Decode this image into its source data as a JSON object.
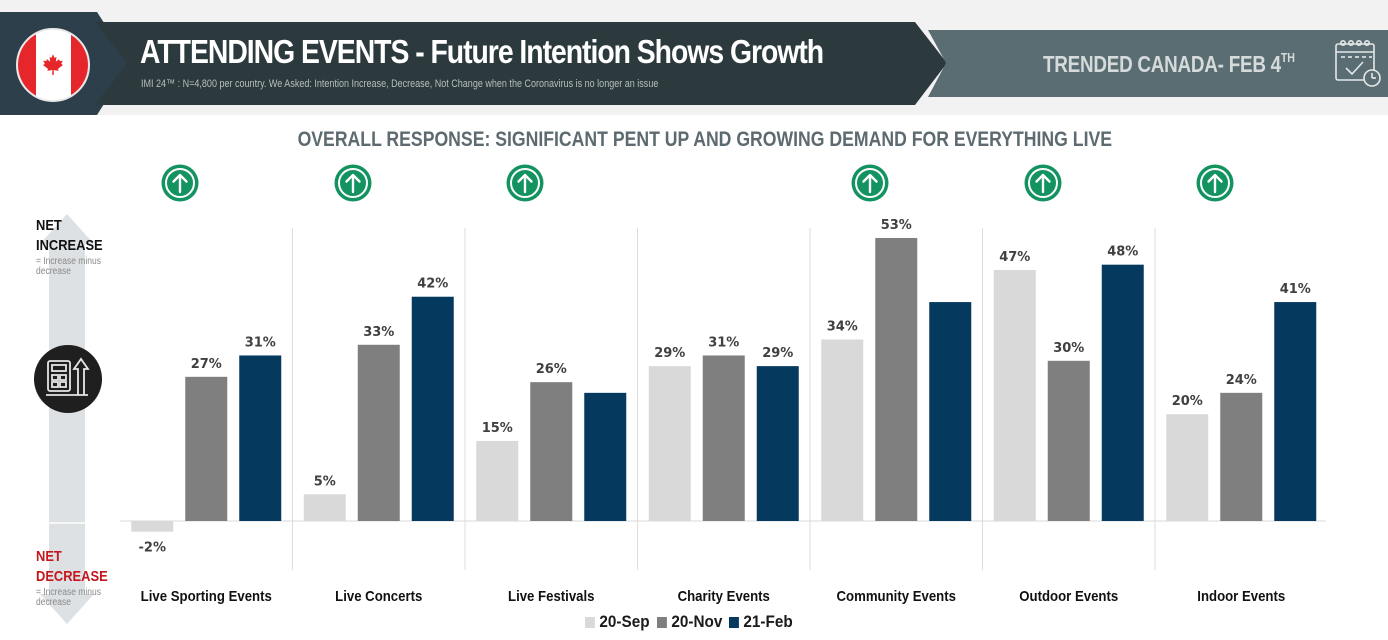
{
  "header": {
    "flag_icon": "canada-flag-icon",
    "title": "ATTENDING EVENTS - Future Intention Shows Growth",
    "subtitle": "IMI 24™ :  N=4,800 per country. We Asked: Intention Increase, Decrease, Not Change when the Coronavirus is no longer an issue",
    "date_label": "TRENDED CANADA- FEB 4",
    "date_suffix": "TH",
    "calendar_icon": "calendar-check-clock-icon"
  },
  "section_title": "OVERALL RESPONSE: SIGNIFICANT PENT UP AND GROWING DEMAND FOR EVERYTHING LIVE",
  "side_axis": {
    "increase_line1": "NET",
    "increase_line2": "INCREASE",
    "increase_note_line1": "= Increase minus",
    "increase_note_line2": "decrease",
    "decrease_line1": "NET",
    "decrease_line2": "DECREASE",
    "decrease_note_line1": "= Increase minus",
    "decrease_note_line2": "decrease",
    "icon": "calculator-arrow-up-icon"
  },
  "colors": {
    "20-Sep": "#d9d9d9",
    "20-Nov": "#7f7f7f",
    "21-Feb": "#05395e",
    "growth_badge": "#13935f",
    "increase_text": "#111111",
    "decrease_text": "#c4161c"
  },
  "chart_data": {
    "type": "bar",
    "title": "OVERALL RESPONSE: SIGNIFICANT PENT UP AND GROWING DEMAND FOR EVERYTHING LIVE",
    "xlabel": "",
    "ylabel": "Net Increase (Increase minus decrease)",
    "ylim": [
      -5,
      55
    ],
    "grid": false,
    "legend_position": "bottom-center",
    "categories": [
      "Live Sporting Events",
      "Live Concerts",
      "Live Festivals",
      "Charity Events",
      "Community Events",
      "Outdoor Events",
      "Indoor Events"
    ],
    "series": [
      {
        "name": "20-Sep",
        "values": [
          -2,
          5,
          15,
          29,
          34,
          47,
          20
        ],
        "labels": [
          "-2%",
          "5%",
          "15%",
          "29%",
          "34%",
          "47%",
          "20%"
        ]
      },
      {
        "name": "20-Nov",
        "values": [
          27,
          33,
          26,
          31,
          53,
          30,
          24
        ],
        "labels": [
          "27%",
          "33%",
          "26%",
          "31%",
          "53%",
          "30%",
          "24%"
        ]
      },
      {
        "name": "21-Feb",
        "values": [
          31,
          42,
          24,
          29,
          41,
          48,
          41
        ],
        "labels": [
          "31%",
          "42%",
          "",
          "29%",
          "",
          "48%",
          "41%"
        ]
      }
    ],
    "growth_indicators": [
      true,
      true,
      true,
      false,
      true,
      true,
      true
    ],
    "growth_icon": "arrow-up-circle-icon"
  }
}
